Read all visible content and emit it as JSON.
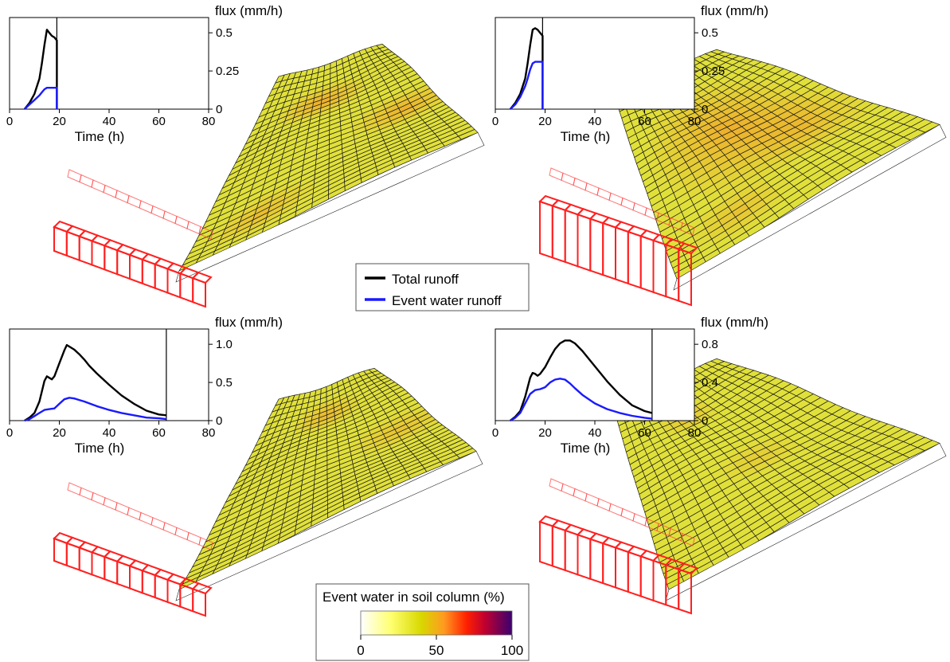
{
  "legend": {
    "items": [
      {
        "label": "Total runoff",
        "color": "#000000"
      },
      {
        "label": "Event water runoff",
        "color": "#1a1aff"
      }
    ]
  },
  "colorbar": {
    "title": "Event water in soil column (%)",
    "ticks": [
      "0",
      "50",
      "100"
    ],
    "range": [
      0,
      100
    ],
    "stops": [
      {
        "value": 0,
        "color": "#ffffff"
      },
      {
        "value": 20,
        "color": "#ffff70"
      },
      {
        "value": 40,
        "color": "#d8d800"
      },
      {
        "value": 55,
        "color": "#ff9a20"
      },
      {
        "value": 70,
        "color": "#ff2000"
      },
      {
        "value": 82,
        "color": "#c00030"
      },
      {
        "value": 100,
        "color": "#3a0070"
      }
    ]
  },
  "chart_data": [
    {
      "type": "line",
      "panel": "top-left",
      "xlabel": "Time (h)",
      "ylabel": "flux (mm/h)",
      "xlim": [
        0,
        80
      ],
      "ylim": [
        0,
        0.6
      ],
      "xticks": [
        "0",
        "20",
        "40",
        "60",
        "80"
      ],
      "yticks": [
        {
          "v": 0,
          "label": "0"
        },
        {
          "v": 0.25,
          "label": "0.25"
        },
        {
          "v": 0.5,
          "label": "0.5"
        }
      ],
      "current_time": 19,
      "series": [
        {
          "name": "Total runoff",
          "x": [
            6,
            8,
            10,
            12,
            13,
            14,
            15,
            16,
            17,
            18,
            19,
            19
          ],
          "y": [
            0,
            0.04,
            0.1,
            0.2,
            0.3,
            0.42,
            0.52,
            0.5,
            0.48,
            0.47,
            0.45,
            0
          ]
        },
        {
          "name": "Event water runoff",
          "x": [
            6,
            8,
            10,
            12,
            13,
            14,
            15,
            16,
            17,
            18,
            19,
            19
          ],
          "y": [
            0,
            0.03,
            0.06,
            0.09,
            0.11,
            0.13,
            0.14,
            0.14,
            0.14,
            0.14,
            0.14,
            0
          ]
        }
      ]
    },
    {
      "type": "line",
      "panel": "top-right",
      "xlabel": "Time (h)",
      "ylabel": "flux (mm/h)",
      "xlim": [
        0,
        80
      ],
      "ylim": [
        0,
        0.6
      ],
      "xticks": [
        "0",
        "20",
        "40",
        "60",
        "80"
      ],
      "yticks": [
        {
          "v": 0,
          "label": "0"
        },
        {
          "v": 0.25,
          "label": "0.25"
        },
        {
          "v": 0.5,
          "label": "0.5"
        }
      ],
      "current_time": 19,
      "series": [
        {
          "name": "Total runoff",
          "x": [
            6,
            8,
            10,
            12,
            13,
            14,
            15,
            16,
            17,
            18,
            19,
            19
          ],
          "y": [
            0,
            0.04,
            0.1,
            0.2,
            0.3,
            0.42,
            0.52,
            0.53,
            0.52,
            0.5,
            0.48,
            0
          ]
        },
        {
          "name": "Event water runoff",
          "x": [
            6,
            8,
            10,
            12,
            13,
            14,
            15,
            16,
            17,
            18,
            19,
            19
          ],
          "y": [
            0,
            0.03,
            0.08,
            0.15,
            0.2,
            0.26,
            0.3,
            0.31,
            0.31,
            0.31,
            0.31,
            0
          ]
        }
      ]
    },
    {
      "type": "line",
      "panel": "bottom-left",
      "xlabel": "Time (h)",
      "ylabel": "flux (mm/h)",
      "xlim": [
        0,
        80
      ],
      "ylim": [
        0,
        1.2
      ],
      "xticks": [
        "0",
        "20",
        "40",
        "60",
        "80"
      ],
      "yticks": [
        {
          "v": 0,
          "label": "0"
        },
        {
          "v": 0.5,
          "label": "0.5"
        },
        {
          "v": 1.0,
          "label": "1.0"
        }
      ],
      "current_time": 63,
      "series": [
        {
          "name": "Total runoff",
          "x": [
            6,
            8,
            10,
            12,
            14,
            15,
            16,
            17,
            18,
            20,
            22,
            23,
            24,
            26,
            28,
            30,
            32,
            35,
            40,
            45,
            50,
            55,
            60,
            63
          ],
          "y": [
            0,
            0.04,
            0.1,
            0.25,
            0.52,
            0.58,
            0.56,
            0.54,
            0.58,
            0.75,
            0.92,
            0.99,
            0.97,
            0.93,
            0.87,
            0.8,
            0.72,
            0.62,
            0.47,
            0.33,
            0.22,
            0.13,
            0.08,
            0.07
          ]
        },
        {
          "name": "Event water runoff",
          "x": [
            6,
            8,
            10,
            12,
            14,
            16,
            18,
            20,
            22,
            24,
            26,
            28,
            30,
            35,
            40,
            45,
            50,
            55,
            60,
            63
          ],
          "y": [
            0,
            0.02,
            0.06,
            0.1,
            0.14,
            0.15,
            0.16,
            0.22,
            0.28,
            0.3,
            0.29,
            0.27,
            0.25,
            0.19,
            0.14,
            0.1,
            0.07,
            0.04,
            0.03,
            0.02
          ]
        }
      ]
    },
    {
      "type": "line",
      "panel": "bottom-right",
      "xlabel": "Time (h)",
      "ylabel": "flux (mm/h)",
      "xlim": [
        0,
        80
      ],
      "ylim": [
        0,
        0.96
      ],
      "xticks": [
        "0",
        "20",
        "40",
        "60",
        "80"
      ],
      "yticks": [
        {
          "v": 0,
          "label": "0"
        },
        {
          "v": 0.4,
          "label": "0.4"
        },
        {
          "v": 0.8,
          "label": "0.8"
        }
      ],
      "current_time": 63,
      "series": [
        {
          "name": "Total runoff",
          "x": [
            6,
            8,
            10,
            12,
            14,
            15,
            16,
            17,
            18,
            20,
            22,
            24,
            26,
            28,
            30,
            32,
            35,
            40,
            45,
            50,
            55,
            60,
            63
          ],
          "y": [
            0,
            0.04,
            0.1,
            0.25,
            0.45,
            0.5,
            0.49,
            0.47,
            0.49,
            0.56,
            0.66,
            0.75,
            0.81,
            0.84,
            0.84,
            0.81,
            0.73,
            0.57,
            0.41,
            0.27,
            0.16,
            0.1,
            0.08
          ]
        },
        {
          "name": "Event water runoff",
          "x": [
            6,
            8,
            10,
            12,
            14,
            16,
            18,
            20,
            22,
            24,
            26,
            28,
            30,
            32,
            35,
            40,
            45,
            50,
            55,
            60,
            63
          ],
          "y": [
            0,
            0.03,
            0.08,
            0.18,
            0.28,
            0.32,
            0.33,
            0.35,
            0.4,
            0.43,
            0.44,
            0.43,
            0.39,
            0.34,
            0.27,
            0.18,
            0.12,
            0.08,
            0.05,
            0.03,
            0.02
          ]
        }
      ]
    }
  ]
}
